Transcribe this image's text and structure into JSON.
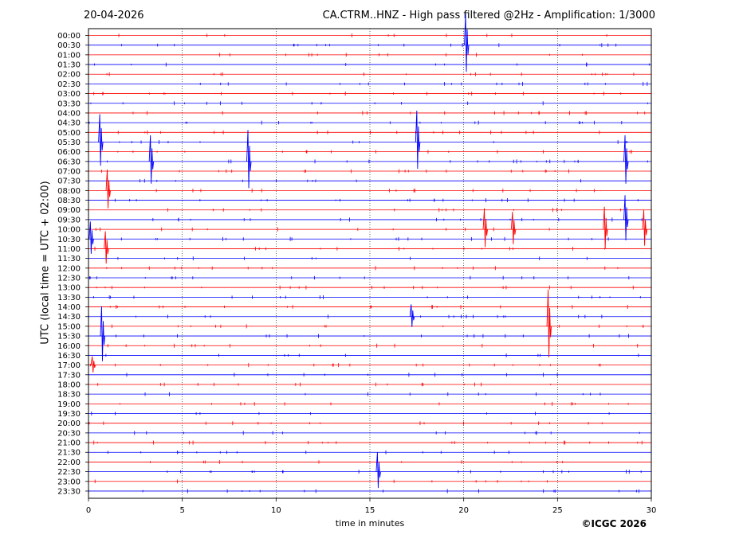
{
  "header": {
    "date": "20-04-2026",
    "title": "CA.CTRM..HNZ - High pass filtered @2Hz - Amplification: 1/3000"
  },
  "footer": {
    "copyright": "©ICGC 2026"
  },
  "chart_data": {
    "type": "line",
    "title": "CA.CTRM..HNZ - High pass filtered @2Hz - Amplification: 1/3000",
    "xlabel": "time in minutes",
    "ylabel": "UTC (local time = UTC + 02:00)",
    "xlim": [
      0,
      30
    ],
    "xticks": [
      0,
      5,
      10,
      15,
      20,
      25,
      30
    ],
    "grid": "vertical dotted at every 5 minutes",
    "row_labels": [
      "00:00",
      "00:30",
      "01:00",
      "01:30",
      "02:00",
      "02:30",
      "03:00",
      "03:30",
      "04:00",
      "04:30",
      "05:00",
      "05:30",
      "06:00",
      "06:30",
      "07:00",
      "07:30",
      "08:00",
      "08:30",
      "09:00",
      "09:30",
      "10:00",
      "10:30",
      "11:00",
      "11:30",
      "12:00",
      "12:30",
      "13:00",
      "13:30",
      "14:00",
      "14:30",
      "15:00",
      "15:30",
      "16:00",
      "16:30",
      "17:00",
      "17:30",
      "18:00",
      "18:30",
      "19:00",
      "19:30",
      "20:00",
      "20:30",
      "21:00",
      "21:30",
      "22:00",
      "22:30",
      "23:00",
      "23:30"
    ],
    "row_colors": [
      "#ff0000",
      "#0000ff"
    ],
    "events": [
      {
        "row": "00:30",
        "minute": 20.1,
        "amplitude": 1.8
      },
      {
        "row": "05:30",
        "minute": 0.6,
        "amplitude": 1.6
      },
      {
        "row": "05:30",
        "minute": 17.5,
        "amplitude": 1.8
      },
      {
        "row": "06:30",
        "minute": 3.3,
        "amplitude": 1.5
      },
      {
        "row": "06:30",
        "minute": 8.5,
        "amplitude": 1.8
      },
      {
        "row": "06:30",
        "minute": 28.6,
        "amplitude": 1.5
      },
      {
        "row": "08:00",
        "minute": 1.0,
        "amplitude": 1.2
      },
      {
        "row": "09:30",
        "minute": 28.6,
        "amplitude": 1.4
      },
      {
        "row": "10:00",
        "minute": 21.1,
        "amplitude": 1.2
      },
      {
        "row": "10:00",
        "minute": 22.6,
        "amplitude": 1.0
      },
      {
        "row": "10:00",
        "minute": 27.5,
        "amplitude": 1.3
      },
      {
        "row": "10:00",
        "minute": 29.6,
        "amplitude": 1.1
      },
      {
        "row": "10:30",
        "minute": 0.1,
        "amplitude": 1.0
      },
      {
        "row": "11:00",
        "minute": 0.9,
        "amplitude": 1.0
      },
      {
        "row": "14:30",
        "minute": 17.2,
        "amplitude": 0.7
      },
      {
        "row": "15:00",
        "minute": 24.5,
        "amplitude": 2.1
      },
      {
        "row": "15:30",
        "minute": 0.7,
        "amplitude": 1.7
      },
      {
        "row": "17:00",
        "minute": 0.2,
        "amplitude": 0.5
      },
      {
        "row": "22:30",
        "minute": 15.4,
        "amplitude": 1.1
      }
    ]
  }
}
